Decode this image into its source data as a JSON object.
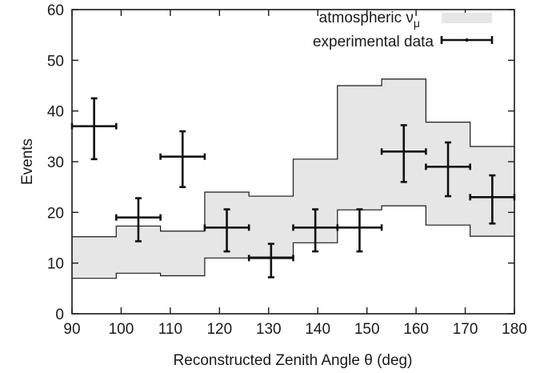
{
  "chart_data": {
    "type": "histogram-with-errorbars",
    "xlabel": "Reconstructed Zenith Angle θ (deg)",
    "ylabel": "Events",
    "xlim": [
      90,
      180
    ],
    "ylim": [
      0,
      60
    ],
    "x_ticks": [
      "90",
      "100",
      "110",
      "120",
      "130",
      "140",
      "150",
      "160",
      "170",
      "180"
    ],
    "y_ticks": [
      "0",
      "10",
      "20",
      "30",
      "40",
      "50",
      "60"
    ],
    "grid": false,
    "legend_position": "top-right",
    "legend": {
      "band_label": "atmospheric ν",
      "band_label_sub": "μ",
      "data_label": "experimental data"
    },
    "bin_edges": [
      90,
      99,
      108,
      117,
      126,
      135,
      144,
      153,
      162,
      171,
      180
    ],
    "series": [
      {
        "name": "atmospheric ν μ",
        "kind": "band",
        "color": "#e6e6e6",
        "lower": [
          7,
          8,
          7.5,
          11,
          11.2,
          14,
          20.5,
          21.3,
          17.5,
          15.3
        ],
        "upper": [
          15.2,
          17.3,
          16.3,
          24,
          23.2,
          30.5,
          45,
          46.3,
          37.8,
          33
        ]
      },
      {
        "name": "experimental data",
        "kind": "errorbar",
        "color": "#111111",
        "points": [
          {
            "x": 94.5,
            "y": 37,
            "y_low": 30.5,
            "y_high": 42.5
          },
          {
            "x": 103.5,
            "y": 19,
            "y_low": 14.3,
            "y_high": 22.8
          },
          {
            "x": 112.5,
            "y": 31,
            "y_low": 25,
            "y_high": 36
          },
          {
            "x": 121.5,
            "y": 17,
            "y_low": 12.3,
            "y_high": 20.6
          },
          {
            "x": 130.5,
            "y": 11,
            "y_low": 7.2,
            "y_high": 13.8
          },
          {
            "x": 139.5,
            "y": 17,
            "y_low": 12.3,
            "y_high": 20.6
          },
          {
            "x": 148.5,
            "y": 17,
            "y_low": 12.3,
            "y_high": 20.6
          },
          {
            "x": 157.5,
            "y": 32,
            "y_low": 26,
            "y_high": 37.2
          },
          {
            "x": 166.5,
            "y": 29,
            "y_low": 23.2,
            "y_high": 33.8
          },
          {
            "x": 175.5,
            "y": 23,
            "y_low": 17.8,
            "y_high": 27.3
          }
        ]
      }
    ]
  }
}
